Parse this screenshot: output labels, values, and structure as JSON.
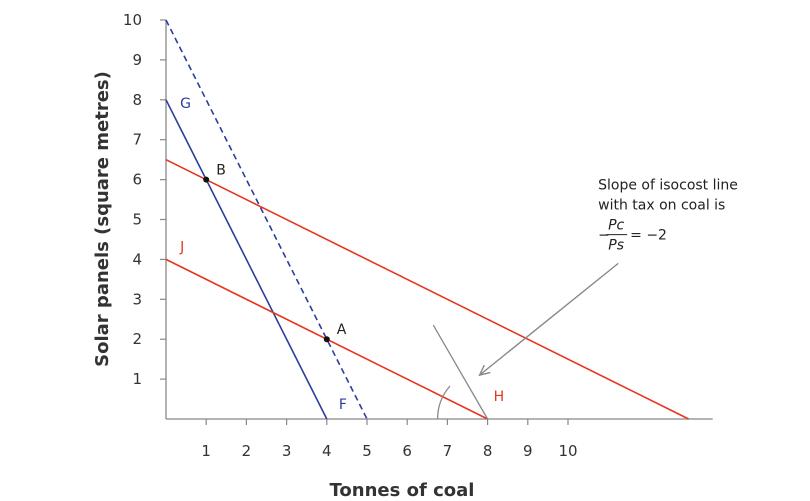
{
  "chart_data": {
    "type": "line",
    "xlabel": "Tonnes of coal",
    "ylabel": "Solar panels (square metres)",
    "x_ticks": [
      1,
      2,
      3,
      4,
      5,
      6,
      7,
      8,
      9,
      10
    ],
    "y_ticks": [
      1,
      2,
      3,
      4,
      5,
      6,
      7,
      8,
      9,
      10
    ],
    "xlim": [
      0,
      13.6
    ],
    "ylim": [
      0,
      10
    ],
    "grid": false,
    "colors": {
      "isoquant": "#2b3d9e",
      "isocost": "#e8351e",
      "annotation": "#888888",
      "axis": "#888888"
    },
    "series": [
      {
        "name": "G",
        "label_at": [
          0.35,
          7.8
        ],
        "color": "#2b3d9e",
        "dashed": false,
        "points": [
          [
            0,
            8
          ],
          [
            4,
            0
          ]
        ]
      },
      {
        "name": "F",
        "label_at": [
          4.3,
          0.25
        ],
        "color": "#2b3d9e",
        "dashed": false,
        "points": []
      },
      {
        "name": "",
        "color": "#2b3d9e",
        "dashed": true,
        "points": [
          [
            0,
            10
          ],
          [
            5,
            0
          ]
        ]
      },
      {
        "name": "J",
        "label_at": [
          0.35,
          4.2
        ],
        "color": "#e8351e",
        "dashed": false,
        "points": [
          [
            0,
            4
          ],
          [
            8,
            0
          ]
        ]
      },
      {
        "name": "H",
        "label_at": [
          8.15,
          0.45
        ],
        "color": "#e8351e",
        "dashed": false,
        "points": []
      },
      {
        "name": "",
        "color": "#e8351e",
        "dashed": false,
        "points": [
          [
            0,
            6.5
          ],
          [
            13,
            0
          ]
        ]
      }
    ],
    "points": [
      {
        "name": "A",
        "x": 4,
        "y": 2
      },
      {
        "name": "B",
        "x": 1,
        "y": 6
      }
    ],
    "annotation": {
      "lines": [
        "Slope of isocost line",
        "with tax on coal is"
      ],
      "numerator": "Pc",
      "denominator": "Ps",
      "result": "= −2",
      "minus": "−",
      "text_at": [
        10.75,
        5.75
      ],
      "arrow_from": [
        11.25,
        3.9
      ],
      "arrow_to": [
        7.8,
        1.1
      ]
    },
    "slope_marker": {
      "line": [
        [
          6.65,
          2.35
        ],
        [
          8,
          0
        ]
      ],
      "arc_center": [
        8,
        0
      ]
    }
  }
}
